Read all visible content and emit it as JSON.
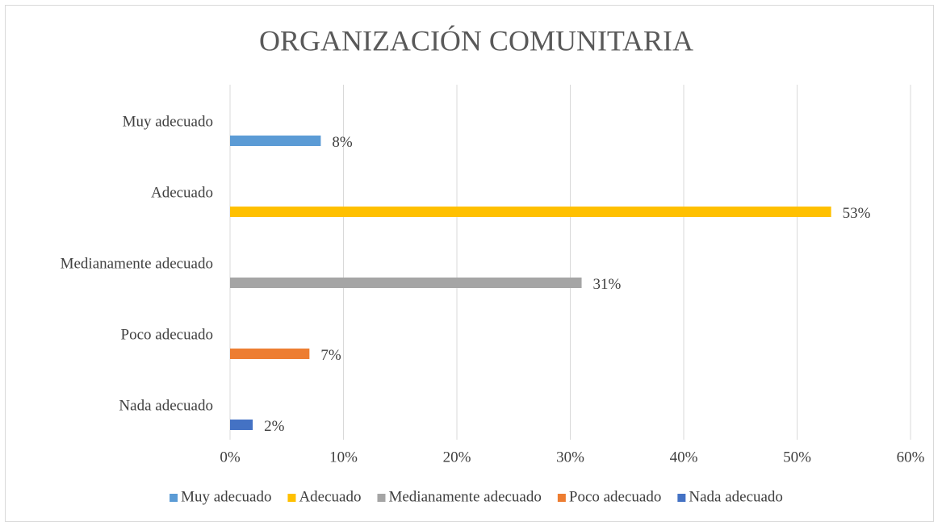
{
  "chart_data": {
    "type": "bar",
    "orientation": "horizontal",
    "title": "ORGANIZACIÓN COMUNITARIA",
    "categories": [
      "Muy adecuado",
      "Adecuado",
      "Medianamente adecuado",
      "Poco adecuado",
      "Nada adecuado"
    ],
    "series": [
      {
        "name": "Muy adecuado",
        "color": "#5b9bd5",
        "values": [
          8,
          null,
          null,
          null,
          null
        ],
        "value_labels": [
          "8%",
          null,
          null,
          null,
          null
        ]
      },
      {
        "name": "Adecuado",
        "color": "#ffc000",
        "values": [
          null,
          53,
          null,
          null,
          null
        ],
        "value_labels": [
          null,
          "53%",
          null,
          null,
          null
        ]
      },
      {
        "name": "Medianamente adecuado",
        "color": "#a5a5a5",
        "values": [
          null,
          null,
          31,
          null,
          null
        ],
        "value_labels": [
          null,
          null,
          "31%",
          null,
          null
        ]
      },
      {
        "name": "Poco adecuado",
        "color": "#ed7d31",
        "values": [
          null,
          null,
          null,
          7,
          null
        ],
        "value_labels": [
          null,
          null,
          null,
          "7%",
          null
        ]
      },
      {
        "name": "Nada adecuado",
        "color": "#4472c4",
        "values": [
          null,
          null,
          null,
          null,
          2
        ],
        "value_labels": [
          null,
          null,
          null,
          null,
          "2%"
        ]
      }
    ],
    "xlim": [
      0,
      60
    ],
    "xticks": [
      {
        "value": 0,
        "label": "0%"
      },
      {
        "value": 10,
        "label": "10%"
      },
      {
        "value": 20,
        "label": "20%"
      },
      {
        "value": 30,
        "label": "30%"
      },
      {
        "value": 40,
        "label": "40%"
      },
      {
        "value": 50,
        "label": "50%"
      },
      {
        "value": 60,
        "label": "60%"
      }
    ],
    "grid": true,
    "legend": "bottom"
  }
}
